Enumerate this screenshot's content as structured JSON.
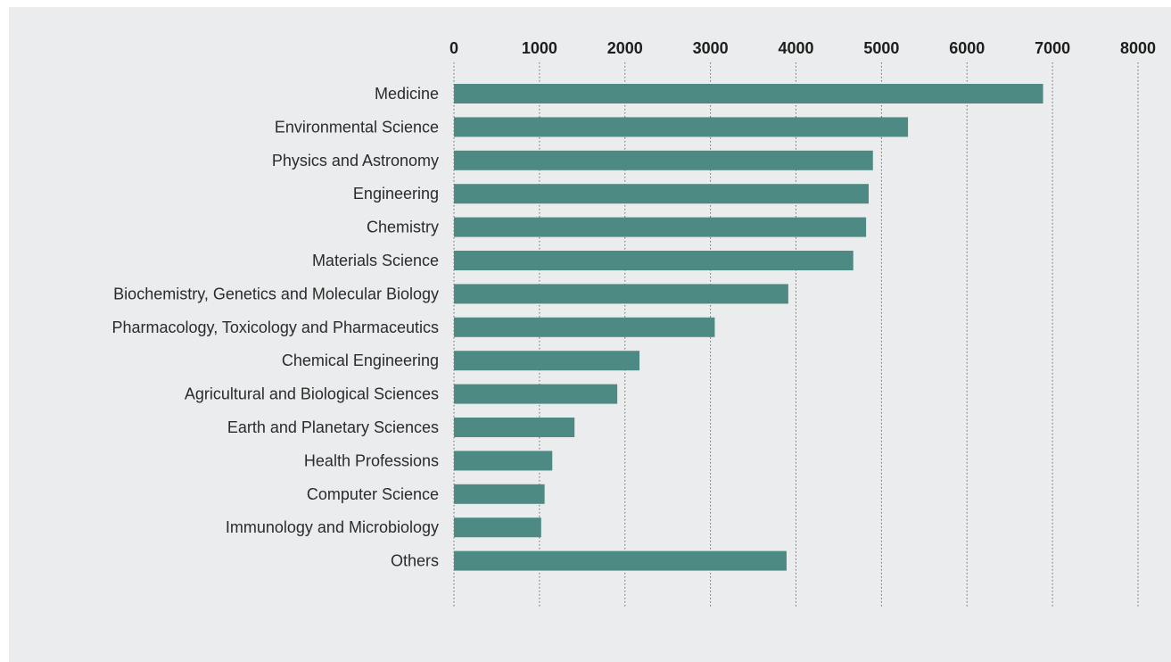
{
  "chart_data": {
    "type": "bar",
    "orientation": "horizontal",
    "categories": [
      "Medicine",
      "Environmental Science",
      "Physics and Astronomy",
      "Engineering",
      "Chemistry",
      "Materials Science",
      "Biochemistry, Genetics and Molecular Biology",
      "Pharmacology, Toxicology and Pharmaceutics",
      "Chemical Engineering",
      "Agricultural and Biological Sciences",
      "Earth and Planetary Sciences",
      "Health Professions",
      "Computer Science",
      "Immunology and Microbiology",
      "Others"
    ],
    "values": [
      6890,
      5310,
      4900,
      4850,
      4820,
      4670,
      3910,
      3050,
      2170,
      1910,
      1410,
      1150,
      1060,
      1020,
      3890
    ],
    "xlim": [
      0,
      8000
    ],
    "xticks": [
      "0",
      "1000",
      "2000",
      "3000",
      "4000",
      "5000",
      "6000",
      "7000",
      "8000"
    ],
    "x_axis_position": "top",
    "grid": "vertical dotted",
    "bar_color": "#4e8a84",
    "background_color": "#ebeced"
  }
}
